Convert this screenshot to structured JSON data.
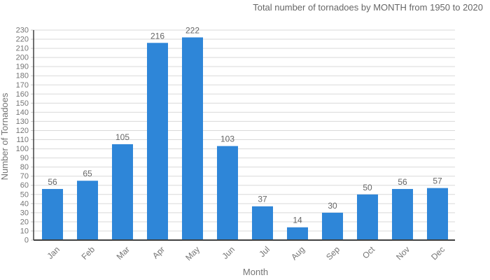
{
  "chart_data": {
    "type": "bar",
    "title": "Total number of tornadoes by MONTH from 1950 to 2020",
    "categories": [
      "Jan",
      "Feb",
      "Mar",
      "Apr",
      "May",
      "Jun",
      "Jul",
      "Aug",
      "Sep",
      "Oct",
      "Nov",
      "Dec"
    ],
    "values": [
      56,
      65,
      105,
      216,
      222,
      103,
      37,
      14,
      30,
      50,
      56,
      57
    ],
    "xlabel": "Month",
    "ylabel": "Number of Tornadoes",
    "ylim": [
      0,
      230
    ],
    "ytick_step": 10,
    "grid": true,
    "legend": "none",
    "colors": {
      "bar": "#2e86d8",
      "gridline": "#d9d9d9",
      "tick": "#c9c9c9",
      "axis": "#404040",
      "tick_label": "#757575",
      "value_label": "#666666",
      "title": "#666666"
    }
  }
}
